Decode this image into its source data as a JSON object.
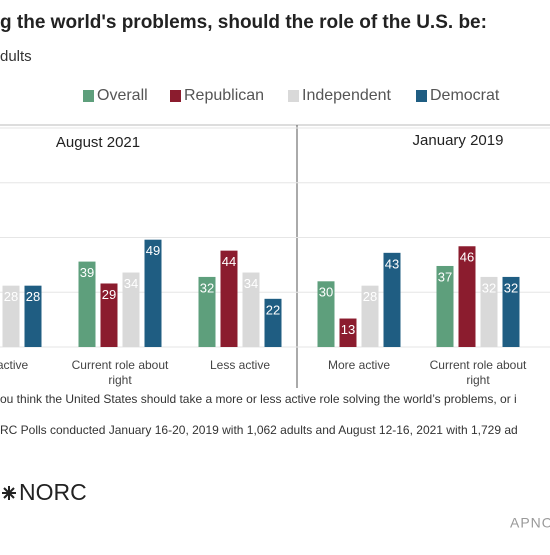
{
  "header": {
    "title": "g the world's problems, should the role of the U.S. be:",
    "subtitle": "dults"
  },
  "chart_data": [
    {
      "type": "bar",
      "title": "August 2021",
      "categories": [
        "active",
        "Current role about right",
        "Less active"
      ],
      "series": [
        {
          "name": "Overall",
          "color": "#5e9f7c",
          "values": [
            null,
            39,
            32
          ]
        },
        {
          "name": "Republican",
          "color": "#8b1c2e",
          "values": [
            null,
            29,
            44
          ]
        },
        {
          "name": "Independent",
          "color": "#d9d9d9",
          "values": [
            28,
            34,
            34
          ]
        },
        {
          "name": "Democrat",
          "color": "#1f5d82",
          "values": [
            28,
            49,
            22
          ]
        }
      ],
      "ylim": [
        0,
        100
      ],
      "yticks": [
        0,
        25,
        50,
        75,
        100
      ],
      "grid": true
    },
    {
      "type": "bar",
      "title": "January 2019",
      "categories": [
        "More active",
        "Current role about right"
      ],
      "series": [
        {
          "color": "#5e9f7c",
          "values": [
            30,
            37
          ]
        },
        {
          "color": "#8b1c2e",
          "values": [
            13,
            46
          ]
        },
        {
          "color": "#d9d9d9",
          "values": [
            28,
            32
          ]
        },
        {
          "color": "#1f5d82",
          "values": [
            43,
            32
          ]
        }
      ],
      "ylim": [
        0,
        100
      ],
      "yticks": [
        0,
        25,
        50,
        75,
        100
      ],
      "grid": true
    }
  ],
  "notes": [
    "ou think the United States should take a more or less active role solving the world’s problems, or i",
    "RC Polls conducted January 16-20, 2019 with 1,062 adults and August 12-16, 2021 with 1,729 ad"
  ],
  "footer": {
    "logo": "NORC",
    "watermark": "APNO"
  }
}
